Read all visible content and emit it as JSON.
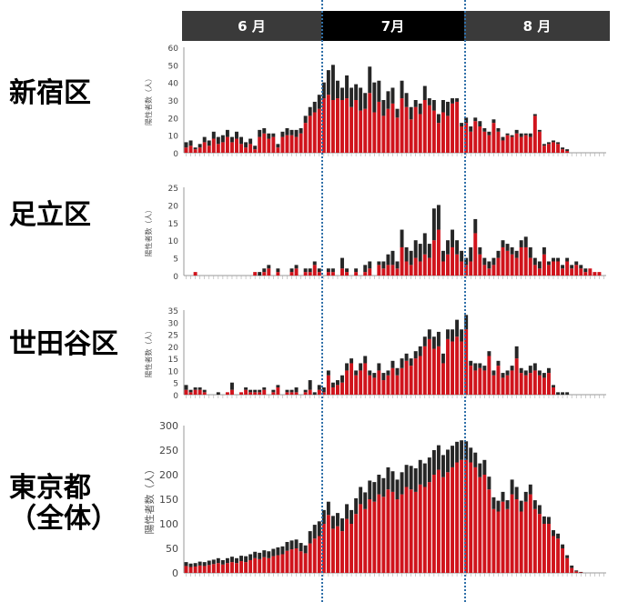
{
  "months": [
    {
      "label": "6 月",
      "color": "#3a3a3a"
    },
    {
      "label": "7月",
      "color": "#000000"
    },
    {
      "label": "8 月",
      "color": "#3a3a3a"
    }
  ],
  "colors": {
    "bar_red": "#d0141c",
    "bar_black": "#262626",
    "guide": "#2f6fa8",
    "axis": "#777777"
  },
  "chart_data": [
    {
      "type": "bar",
      "title": "新宿区",
      "ylabel": "陽性者数（人）",
      "ylim": [
        0,
        60
      ],
      "yticks": [
        0,
        10,
        20,
        30,
        40,
        50,
        60
      ],
      "x": [
        1,
        2,
        3,
        4,
        5,
        6,
        7,
        8,
        9,
        10,
        11,
        12,
        13,
        14,
        15,
        16,
        17,
        18,
        19,
        20,
        21,
        22,
        23,
        24,
        25,
        26,
        27,
        28,
        29,
        30,
        31,
        32,
        33,
        34,
        35,
        36,
        37,
        38,
        39,
        40,
        41,
        42,
        43,
        44,
        45,
        46,
        47,
        48,
        49,
        50,
        51,
        52,
        53,
        54,
        55,
        56,
        57,
        58,
        59,
        60,
        61,
        62,
        63,
        64,
        65,
        66,
        67,
        68,
        69,
        70,
        71,
        72,
        73,
        74,
        75,
        76,
        77,
        78,
        79,
        80,
        81,
        82,
        83,
        84,
        85,
        86,
        87,
        88,
        89,
        90,
        91,
        92
      ],
      "series": [
        {
          "values": [
            3,
            4,
            2,
            3,
            6,
            4,
            8,
            5,
            6,
            9,
            6,
            8,
            5,
            3,
            5,
            2,
            9,
            11,
            8,
            9,
            3,
            9,
            10,
            10,
            9,
            11,
            17,
            21,
            23,
            25,
            31,
            33,
            30,
            31,
            30,
            31,
            26,
            30,
            24,
            25,
            34,
            23,
            29,
            21,
            25,
            28,
            20,
            31,
            26,
            19,
            26,
            22,
            30,
            27,
            24,
            17,
            23,
            21,
            28,
            29,
            15,
            17,
            12,
            18,
            15,
            12,
            10,
            17,
            12,
            7,
            10,
            9,
            11,
            9,
            10,
            9,
            21,
            12,
            4,
            5,
            6,
            5,
            2,
            1,
            0,
            0,
            0,
            0,
            0,
            0,
            0,
            0
          ]
        },
        {
          "values": [
            3,
            3,
            1,
            2,
            3,
            3,
            4,
            4,
            4,
            4,
            3,
            4,
            4,
            3,
            3,
            2,
            4,
            3,
            3,
            2,
            2,
            3,
            4,
            3,
            4,
            3,
            4,
            5,
            6,
            8,
            9,
            14,
            20,
            10,
            7,
            13,
            11,
            9,
            13,
            9,
            15,
            17,
            12,
            9,
            10,
            9,
            5,
            10,
            8,
            7,
            4,
            6,
            8,
            4,
            6,
            5,
            7,
            8,
            3,
            2,
            2,
            3,
            3,
            2,
            3,
            2,
            2,
            2,
            2,
            2,
            1,
            1,
            2,
            2,
            1,
            2,
            1,
            1,
            1,
            1,
            1,
            1,
            1,
            1,
            0,
            0,
            0,
            0,
            0,
            0,
            0,
            0
          ]
        }
      ]
    },
    {
      "type": "bar",
      "title": "足立区",
      "ylabel": "陽性者数（人）",
      "ylim": [
        0,
        25
      ],
      "yticks": [
        0,
        5,
        10,
        15,
        20,
        25
      ],
      "x": [
        1,
        2,
        3,
        4,
        5,
        6,
        7,
        8,
        9,
        10,
        11,
        12,
        13,
        14,
        15,
        16,
        17,
        18,
        19,
        20,
        21,
        22,
        23,
        24,
        25,
        26,
        27,
        28,
        29,
        30,
        31,
        32,
        33,
        34,
        35,
        36,
        37,
        38,
        39,
        40,
        41,
        42,
        43,
        44,
        45,
        46,
        47,
        48,
        49,
        50,
        51,
        52,
        53,
        54,
        55,
        56,
        57,
        58,
        59,
        60,
        61,
        62,
        63,
        64,
        65,
        66,
        67,
        68,
        69,
        70,
        71,
        72,
        73,
        74,
        75,
        76,
        77,
        78,
        79,
        80,
        81,
        82,
        83,
        84,
        85,
        86,
        87,
        88,
        89,
        90,
        91,
        92
      ],
      "series": [
        {
          "values": [
            0,
            0,
            1,
            0,
            0,
            0,
            0,
            0,
            0,
            0,
            0,
            0,
            0,
            0,
            0,
            1,
            0,
            1,
            2,
            0,
            1,
            0,
            0,
            1,
            2,
            0,
            1,
            1,
            3,
            1,
            0,
            1,
            1,
            0,
            2,
            1,
            0,
            1,
            0,
            1,
            2,
            0,
            3,
            2,
            3,
            3,
            2,
            8,
            4,
            3,
            5,
            4,
            6,
            5,
            10,
            13,
            4,
            6,
            8,
            6,
            4,
            3,
            4,
            12,
            6,
            3,
            2,
            3,
            5,
            8,
            7,
            6,
            5,
            8,
            8,
            5,
            3,
            2,
            6,
            3,
            4,
            4,
            2,
            4,
            2,
            3,
            2,
            1,
            2,
            1,
            1,
            0
          ]
        },
        {
          "values": [
            0,
            0,
            0,
            0,
            0,
            0,
            0,
            0,
            0,
            0,
            0,
            0,
            0,
            0,
            0,
            0,
            1,
            1,
            1,
            0,
            1,
            0,
            0,
            1,
            1,
            0,
            1,
            1,
            1,
            1,
            0,
            1,
            1,
            0,
            3,
            1,
            0,
            1,
            0,
            2,
            2,
            0,
            1,
            2,
            3,
            4,
            2,
            5,
            4,
            4,
            5,
            5,
            6,
            4,
            9,
            7,
            3,
            4,
            5,
            4,
            3,
            2,
            4,
            4,
            2,
            2,
            2,
            2,
            2,
            2,
            2,
            2,
            2,
            2,
            3,
            3,
            2,
            2,
            2,
            1,
            1,
            1,
            1,
            1,
            1,
            1,
            1,
            1,
            0,
            0,
            0,
            0
          ]
        }
      ]
    },
    {
      "type": "bar",
      "title": "世田谷区",
      "ylabel": "陽性者数（人）",
      "ylim": [
        0,
        35
      ],
      "yticks": [
        0,
        5,
        10,
        15,
        20,
        25,
        30,
        35
      ],
      "x": [
        1,
        2,
        3,
        4,
        5,
        6,
        7,
        8,
        9,
        10,
        11,
        12,
        13,
        14,
        15,
        16,
        17,
        18,
        19,
        20,
        21,
        22,
        23,
        24,
        25,
        26,
        27,
        28,
        29,
        30,
        31,
        32,
        33,
        34,
        35,
        36,
        37,
        38,
        39,
        40,
        41,
        42,
        43,
        44,
        45,
        46,
        47,
        48,
        49,
        50,
        51,
        52,
        53,
        54,
        55,
        56,
        57,
        58,
        59,
        60,
        61,
        62,
        63,
        64,
        65,
        66,
        67,
        68,
        69,
        70,
        71,
        72,
        73,
        74,
        75,
        76,
        77,
        78,
        79,
        80,
        81,
        82,
        83,
        84,
        85,
        86,
        87,
        88,
        89,
        90,
        91,
        92
      ],
      "series": [
        {
          "values": [
            2,
            1,
            2,
            2,
            1,
            0,
            0,
            0,
            0,
            1,
            2,
            0,
            1,
            2,
            1,
            1,
            1,
            2,
            0,
            1,
            3,
            0,
            1,
            1,
            1,
            0,
            1,
            2,
            0,
            2,
            1,
            8,
            3,
            4,
            5,
            10,
            13,
            8,
            10,
            13,
            8,
            7,
            10,
            6,
            8,
            11,
            8,
            11,
            14,
            12,
            15,
            16,
            20,
            23,
            19,
            20,
            13,
            23,
            22,
            24,
            22,
            27,
            12,
            10,
            11,
            10,
            16,
            8,
            12,
            7,
            8,
            10,
            15,
            9,
            8,
            9,
            10,
            8,
            7,
            9,
            3,
            0,
            0,
            0,
            0,
            0,
            0,
            0,
            0,
            0,
            0,
            0
          ]
        },
        {
          "values": [
            2,
            1,
            1,
            1,
            1,
            0,
            0,
            1,
            0,
            0,
            3,
            0,
            0,
            1,
            1,
            1,
            1,
            1,
            0,
            1,
            1,
            0,
            1,
            1,
            2,
            0,
            1,
            4,
            1,
            2,
            2,
            2,
            2,
            2,
            3,
            3,
            2,
            2,
            3,
            3,
            2,
            2,
            3,
            3,
            2,
            3,
            3,
            4,
            3,
            3,
            3,
            4,
            4,
            4,
            5,
            6,
            4,
            4,
            5,
            7,
            5,
            6,
            2,
            3,
            2,
            2,
            2,
            2,
            2,
            2,
            2,
            2,
            5,
            2,
            2,
            3,
            3,
            2,
            2,
            2,
            1,
            1,
            1,
            1,
            0,
            0,
            0,
            0,
            0,
            0,
            0,
            0
          ]
        }
      ]
    },
    {
      "type": "bar",
      "title": "東京都（全体）",
      "ylabel": "陽性者数（人）",
      "ylim": [
        0,
        300
      ],
      "yticks": [
        0,
        50,
        100,
        150,
        200,
        250,
        300
      ],
      "x": [
        1,
        2,
        3,
        4,
        5,
        6,
        7,
        8,
        9,
        10,
        11,
        12,
        13,
        14,
        15,
        16,
        17,
        18,
        19,
        20,
        21,
        22,
        23,
        24,
        25,
        26,
        27,
        28,
        29,
        30,
        31,
        32,
        33,
        34,
        35,
        36,
        37,
        38,
        39,
        40,
        41,
        42,
        43,
        44,
        45,
        46,
        47,
        48,
        49,
        50,
        51,
        52,
        53,
        54,
        55,
        56,
        57,
        58,
        59,
        60,
        61,
        62,
        63,
        64,
        65,
        66,
        67,
        68,
        69,
        70,
        71,
        72,
        73,
        74,
        75,
        76,
        77,
        78,
        79,
        80,
        81,
        82,
        83,
        84,
        85,
        86,
        87,
        88,
        89,
        90,
        91,
        92
      ],
      "series": [
        {
          "values": [
            14,
            12,
            13,
            15,
            14,
            16,
            18,
            20,
            17,
            20,
            22,
            20,
            24,
            22,
            26,
            30,
            28,
            32,
            30,
            34,
            36,
            38,
            45,
            48,
            50,
            44,
            40,
            60,
            70,
            75,
            100,
            118,
            90,
            95,
            85,
            110,
            100,
            120,
            140,
            130,
            150,
            145,
            160,
            155,
            170,
            165,
            150,
            160,
            175,
            170,
            165,
            180,
            175,
            185,
            200,
            210,
            195,
            205,
            215,
            225,
            230,
            230,
            225,
            215,
            195,
            200,
            170,
            130,
            125,
            145,
            130,
            160,
            150,
            125,
            145,
            160,
            130,
            120,
            100,
            100,
            75,
            70,
            50,
            30,
            10,
            3,
            1,
            0,
            0,
            0,
            0,
            0
          ]
        },
        {
          "values": [
            8,
            7,
            7,
            8,
            8,
            9,
            9,
            10,
            9,
            10,
            11,
            10,
            11,
            12,
            12,
            13,
            13,
            14,
            14,
            15,
            16,
            16,
            18,
            18,
            18,
            17,
            16,
            25,
            28,
            30,
            28,
            27,
            26,
            27,
            26,
            30,
            28,
            32,
            35,
            34,
            38,
            40,
            40,
            38,
            45,
            42,
            40,
            45,
            45,
            48,
            48,
            50,
            48,
            50,
            50,
            50,
            45,
            46,
            44,
            42,
            40,
            38,
            30,
            30,
            28,
            30,
            26,
            24,
            22,
            20,
            18,
            30,
            25,
            22,
            20,
            20,
            18,
            18,
            15,
            14,
            12,
            10,
            8,
            6,
            5,
            2,
            1,
            0,
            0,
            0,
            0,
            0
          ]
        }
      ]
    }
  ]
}
